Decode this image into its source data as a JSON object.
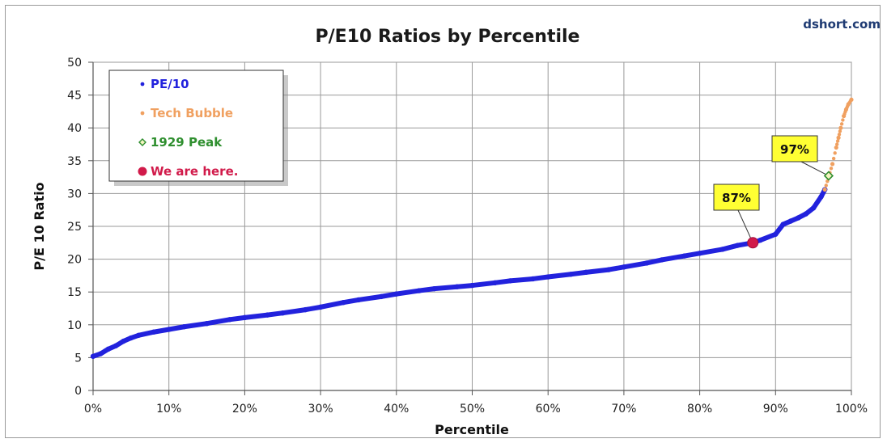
{
  "chart_data": {
    "type": "scatter",
    "title": "P/E10 Ratios by Percentile",
    "source": "dshort.com",
    "xlabel": "Percentile",
    "ylabel": "P/E 10 Ratio",
    "xlim": [
      0,
      100
    ],
    "ylim": [
      0,
      50
    ],
    "x_ticks": [
      "0%",
      "10%",
      "20%",
      "30%",
      "40%",
      "50%",
      "60%",
      "70%",
      "80%",
      "90%",
      "100%"
    ],
    "y_ticks": [
      "0",
      "5",
      "10",
      "15",
      "20",
      "25",
      "30",
      "35",
      "40",
      "45",
      "50"
    ],
    "grid": true,
    "legend_position": "top-left",
    "series": [
      {
        "name": "PE/10",
        "color": "#2222dd",
        "x": [
          0,
          1,
          2,
          3,
          4,
          5,
          6,
          8,
          10,
          12,
          15,
          18,
          20,
          23,
          25,
          28,
          30,
          33,
          35,
          38,
          40,
          43,
          45,
          48,
          50,
          53,
          55,
          58,
          60,
          63,
          65,
          68,
          70,
          73,
          75,
          78,
          80,
          83,
          85,
          87,
          88,
          90,
          91,
          92,
          93,
          94,
          95,
          96,
          96.5
        ],
        "y": [
          5.2,
          5.6,
          6.3,
          6.8,
          7.5,
          8,
          8.4,
          8.9,
          9.3,
          9.7,
          10.2,
          10.8,
          11.1,
          11.5,
          11.8,
          12.3,
          12.7,
          13.4,
          13.8,
          14.3,
          14.7,
          15.2,
          15.5,
          15.8,
          16,
          16.4,
          16.7,
          17,
          17.3,
          17.7,
          18,
          18.4,
          18.8,
          19.4,
          19.9,
          20.5,
          20.9,
          21.5,
          22.1,
          22.5,
          22.9,
          23.8,
          25.3,
          25.8,
          26.3,
          26.9,
          27.8,
          29.5,
          30.6
        ]
      },
      {
        "name": "Tech Bubble",
        "color": "#f0a060",
        "x": [
          96.5,
          97,
          97.5,
          98,
          98.3,
          98.6,
          99,
          99.3,
          99.6,
          100
        ],
        "y": [
          30.6,
          32.5,
          34.5,
          37,
          38.5,
          40,
          41.8,
          42.8,
          43.6,
          44.3
        ]
      },
      {
        "name": "1929 Peak",
        "color": "#2f8f2f",
        "x": [
          97
        ],
        "y": [
          32.7
        ]
      },
      {
        "name": "We are here.",
        "color": "#d11a4a",
        "x": [
          87
        ],
        "y": [
          22.5
        ]
      }
    ],
    "legend": [
      {
        "label": "PE/10",
        "color": "#2222dd",
        "marker": "dot"
      },
      {
        "label": "Tech Bubble",
        "color": "#f0a060",
        "marker": "dot"
      },
      {
        "label": "1929 Peak",
        "color": "#2f8f2f",
        "marker": "diamond"
      },
      {
        "label": "We are here.",
        "color": "#d11a4a",
        "marker": "circle"
      }
    ],
    "annotations": [
      {
        "text": "87%",
        "x": 87,
        "y": 22.5
      },
      {
        "text": "97%",
        "x": 97,
        "y": 32.7
      }
    ],
    "gridline_color": "#9a9a9a",
    "callout_fill": "#ffff33"
  }
}
